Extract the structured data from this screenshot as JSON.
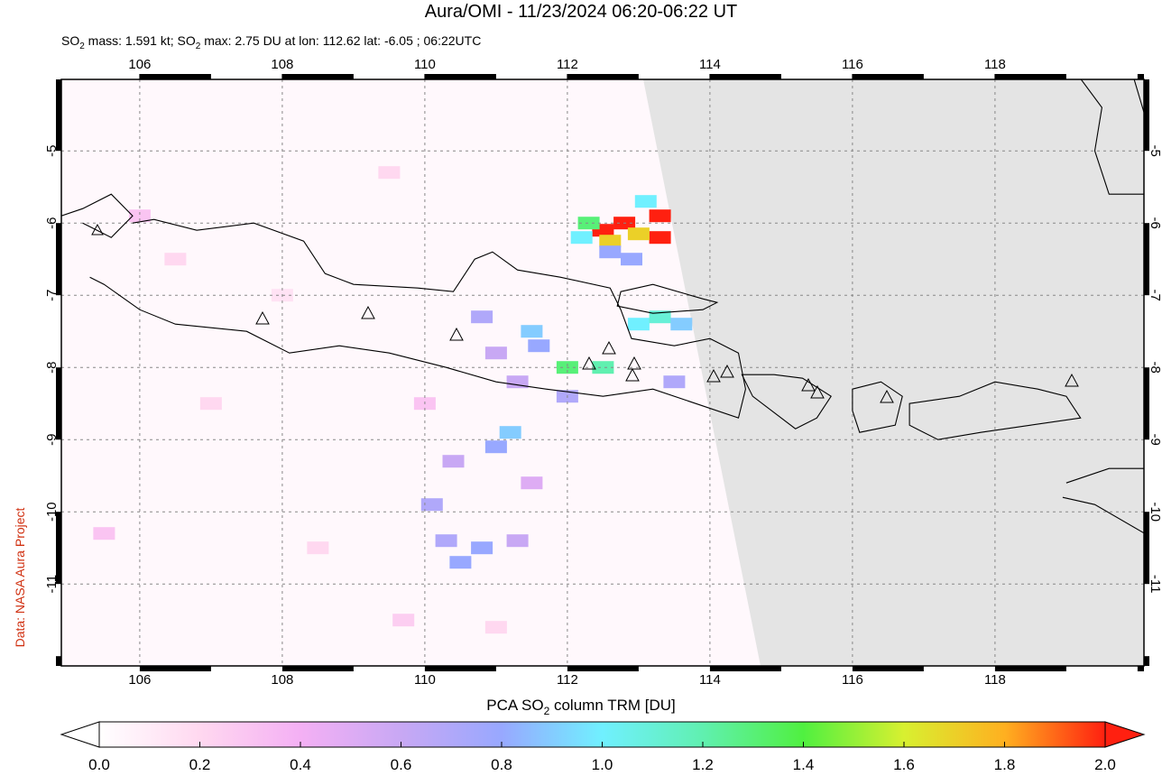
{
  "map": {
    "title": "Aura/OMI - 11/23/2024 06:20-06:22 UT",
    "subtitle": [
      "SO",
      "2",
      " mass: 1.591 kt; ",
      "SO",
      "2",
      " max: 2.75 DU at lon: 112.62 lat: -6.05 ; 06:22UTC"
    ],
    "credit": "Data: NASA Aura Project",
    "lon_ticks": [
      106,
      108,
      110,
      112,
      114,
      116,
      118
    ],
    "lat_ticks": [
      -5,
      -6,
      -7,
      -8,
      -9,
      -10,
      -11
    ],
    "so2_pixels": [
      {
        "lon": 113.3,
        "lat": -5.9,
        "value": 2.0
      },
      {
        "lon": 113.3,
        "lat": -6.2,
        "value": 2.0
      },
      {
        "lon": 112.5,
        "lat": -6.1,
        "value": 2.0
      },
      {
        "lon": 112.8,
        "lat": -6.0,
        "value": 2.0
      },
      {
        "lon": 112.6,
        "lat": -6.25,
        "value": 1.7
      },
      {
        "lon": 113.0,
        "lat": -6.15,
        "value": 1.7
      },
      {
        "lon": 112.3,
        "lat": -6.0,
        "value": 1.3
      },
      {
        "lon": 112.2,
        "lat": -6.2,
        "value": 1.0
      },
      {
        "lon": 113.1,
        "lat": -5.7,
        "value": 1.0
      },
      {
        "lon": 112.6,
        "lat": -6.4,
        "value": 0.8
      },
      {
        "lon": 112.9,
        "lat": -6.5,
        "value": 0.8
      },
      {
        "lon": 111.5,
        "lat": -7.5,
        "value": 0.9
      },
      {
        "lon": 111.6,
        "lat": -7.7,
        "value": 0.8
      },
      {
        "lon": 112.0,
        "lat": -8.0,
        "value": 1.3
      },
      {
        "lon": 112.5,
        "lat": -8.0,
        "value": 1.2
      },
      {
        "lon": 113.0,
        "lat": -7.4,
        "value": 1.0
      },
      {
        "lon": 113.3,
        "lat": -7.3,
        "value": 1.1
      },
      {
        "lon": 110.8,
        "lat": -7.3,
        "value": 0.7
      },
      {
        "lon": 111.0,
        "lat": -7.8,
        "value": 0.6
      },
      {
        "lon": 111.3,
        "lat": -8.2,
        "value": 0.6
      },
      {
        "lon": 112.0,
        "lat": -8.4,
        "value": 0.7
      },
      {
        "lon": 110.4,
        "lat": -9.3,
        "value": 0.6
      },
      {
        "lon": 111.0,
        "lat": -9.1,
        "value": 0.8
      },
      {
        "lon": 111.2,
        "lat": -8.9,
        "value": 0.9
      },
      {
        "lon": 110.1,
        "lat": -9.9,
        "value": 0.7
      },
      {
        "lon": 110.3,
        "lat": -10.4,
        "value": 0.7
      },
      {
        "lon": 110.5,
        "lat": -10.7,
        "value": 0.8
      },
      {
        "lon": 110.8,
        "lat": -10.5,
        "value": 0.8
      },
      {
        "lon": 111.3,
        "lat": -10.4,
        "value": 0.6
      },
      {
        "lon": 111.5,
        "lat": -9.6,
        "value": 0.5
      },
      {
        "lon": 113.5,
        "lat": -8.2,
        "value": 0.7
      },
      {
        "lon": 113.6,
        "lat": -7.4,
        "value": 0.9
      },
      {
        "lon": 106.0,
        "lat": -5.9,
        "value": 0.3
      },
      {
        "lon": 106.5,
        "lat": -6.5,
        "value": 0.2
      },
      {
        "lon": 108.0,
        "lat": -7.0,
        "value": 0.15
      },
      {
        "lon": 109.5,
        "lat": -5.3,
        "value": 0.2
      },
      {
        "lon": 110.0,
        "lat": -8.5,
        "value": 0.3
      },
      {
        "lon": 107.0,
        "lat": -8.5,
        "value": 0.2
      },
      {
        "lon": 105.5,
        "lat": -10.3,
        "value": 0.3
      },
      {
        "lon": 108.5,
        "lat": -10.5,
        "value": 0.2
      },
      {
        "lon": 109.7,
        "lat": -11.5,
        "value": 0.25
      },
      {
        "lon": 111.0,
        "lat": -11.6,
        "value": 0.2
      }
    ],
    "colorbar": {
      "label": [
        "PCA SO",
        "2",
        " column TRM [DU]"
      ],
      "range": [
        0,
        2
      ],
      "ticks": [
        {
          "value": 0,
          "label": "0.0"
        },
        0.2,
        0.4,
        0.6,
        0.8,
        {
          "value": 1,
          "label": "1.0"
        },
        1.2,
        1.4,
        1.6,
        1.8,
        {
          "value": 2,
          "label": "2.0"
        }
      ]
    }
  }
}
